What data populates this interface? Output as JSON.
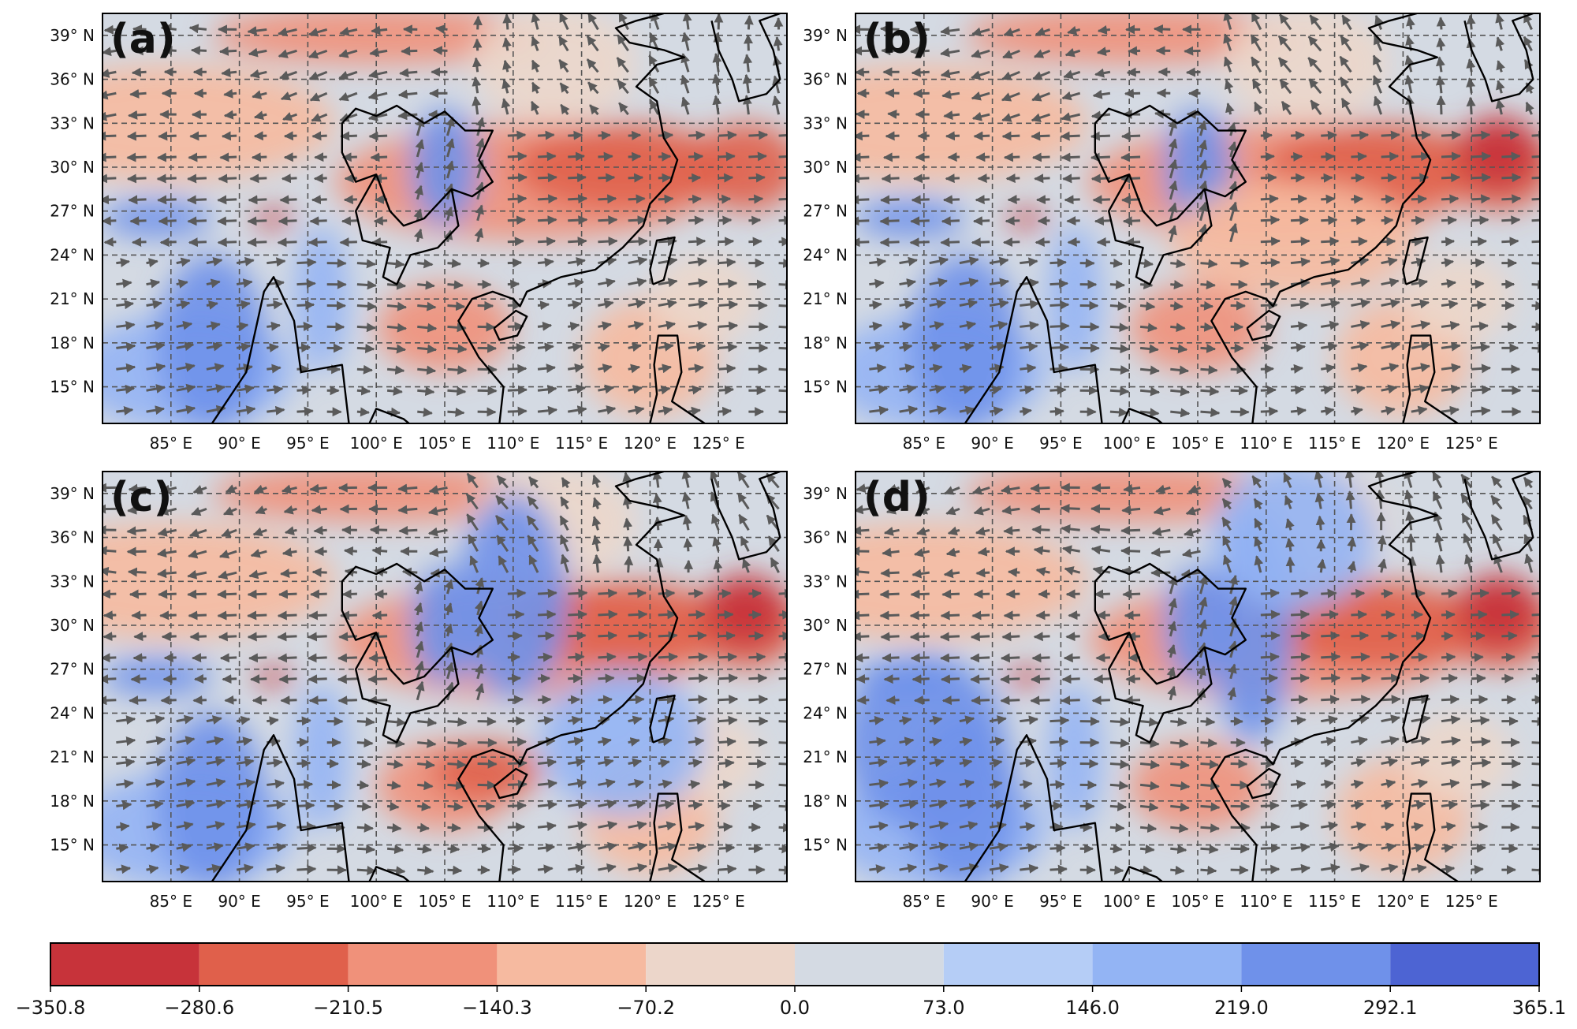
{
  "map": {
    "lon_range": [
      80,
      130
    ],
    "lat_range": [
      12.5,
      40.5
    ],
    "lon_ticks": [
      85,
      90,
      95,
      100,
      105,
      110,
      115,
      120,
      125
    ],
    "lat_ticks": [
      15,
      18,
      21,
      24,
      27,
      30,
      33,
      36,
      39
    ],
    "lon_tick_labels": [
      "85° E",
      "90° E",
      "95° E",
      "100° E",
      "105° E",
      "110° E",
      "115° E",
      "120° E",
      "125° E"
    ],
    "lat_tick_labels": [
      "15° N",
      "18° N",
      "21° N",
      "24° N",
      "27° N",
      "30° N",
      "33° N",
      "36° N",
      "39° N"
    ],
    "gridlines": true,
    "vector_color": "#5a5a5a",
    "coastline_color": "#000000"
  },
  "panels": [
    {
      "label": "(a)",
      "variant": 0
    },
    {
      "label": "(b)",
      "variant": 1
    },
    {
      "label": "(c)",
      "variant": 2
    },
    {
      "label": "(d)",
      "variant": 3
    }
  ],
  "colorbar": {
    "ticks": [
      "−350.8",
      "−280.6",
      "−210.5",
      "−140.3",
      "−70.2",
      "0.0",
      "73.0",
      "146.0",
      "219.0",
      "292.1",
      "365.1"
    ],
    "colors": [
      "#c7333a",
      "#e0604b",
      "#f0917a",
      "#f6baa0",
      "#ecd6ca",
      "#d4dae3",
      "#b5cdf6",
      "#93b4f4",
      "#6f91ea",
      "#4d64d3"
    ]
  }
}
